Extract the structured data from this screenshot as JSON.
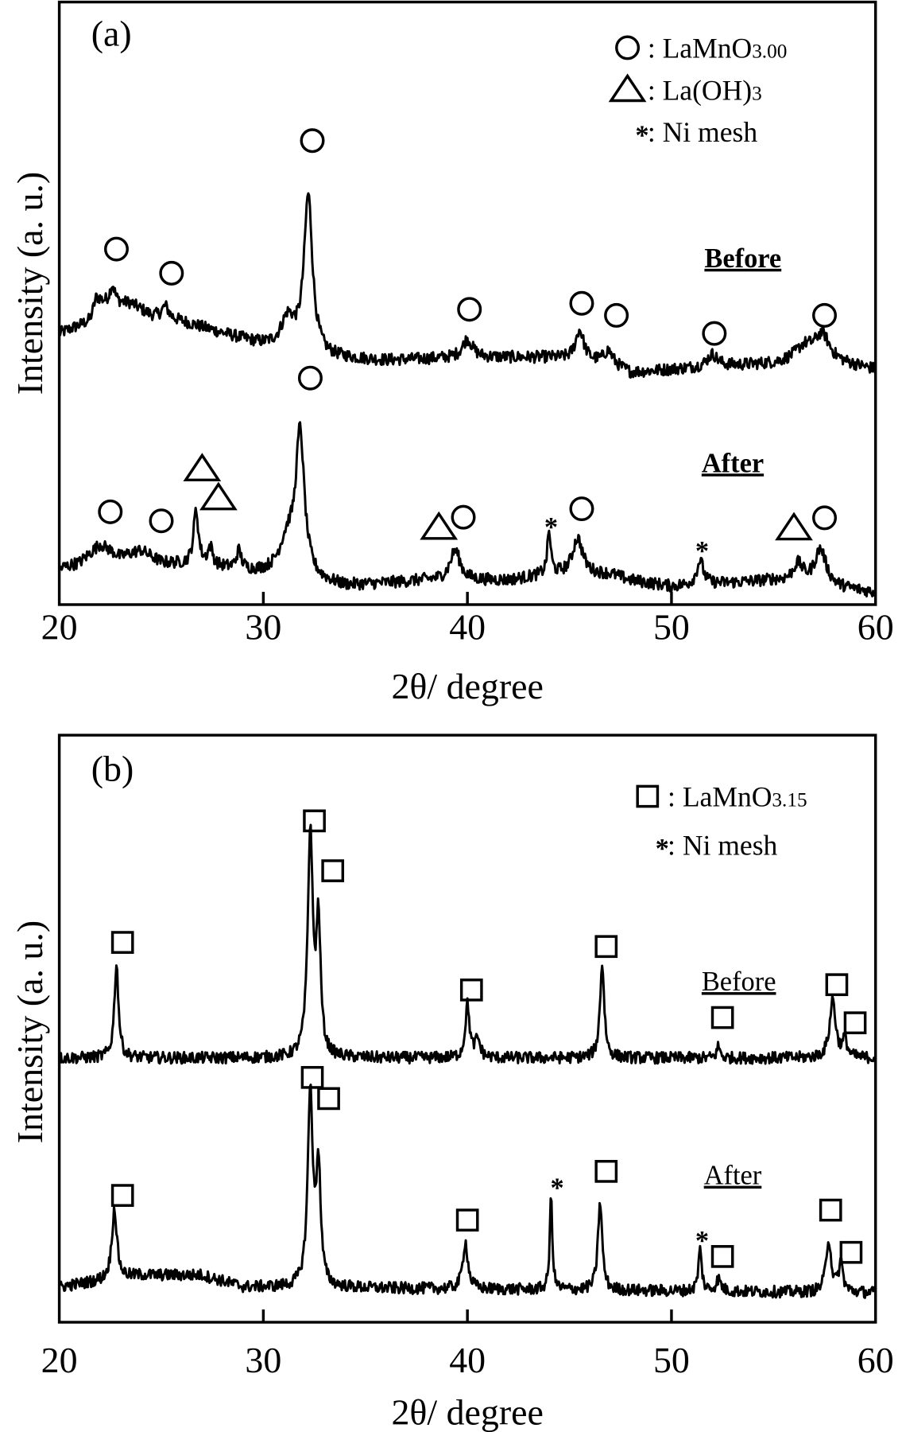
{
  "chart_data": [
    {
      "type": "line",
      "panel_label": "(a)",
      "xlabel": "2θ/ degree",
      "ylabel": "Intensity (a. u.)",
      "xlim": [
        20,
        60
      ],
      "ylim": [
        0,
        100
      ],
      "xticks": [
        20,
        30,
        40,
        50,
        60
      ],
      "trace_label_bold": true,
      "legend": [
        {
          "symbol": "circle",
          "text": ": LaMnO",
          "sub": "3.00"
        },
        {
          "symbol": "triangle",
          "text": ": La(OH)",
          "sub": "3"
        },
        {
          "symbol": "star",
          "text": ": Ni mesh",
          "sub": ""
        }
      ],
      "series": [
        {
          "name": "Before",
          "label_pos": [
            53.5,
            56
          ],
          "baseline": [
            [
              20,
              45
            ],
            [
              21.5,
              47
            ],
            [
              22,
              50
            ],
            [
              23.5,
              50
            ],
            [
              24.5,
              48
            ],
            [
              26,
              47
            ],
            [
              30,
              43
            ],
            [
              33,
              41
            ],
            [
              36,
              40.5
            ],
            [
              40,
              41
            ],
            [
              44,
              41
            ],
            [
              47,
              40
            ],
            [
              48,
              38.5
            ],
            [
              52,
              39.5
            ],
            [
              55,
              40
            ],
            [
              57,
              41
            ],
            [
              60,
              39
            ]
          ],
          "peaks": [
            [
              21.8,
              2,
              0.3
            ],
            [
              22.6,
              3,
              0.3
            ],
            [
              25.2,
              2,
              0.4
            ],
            [
              31.2,
              5,
              0.8
            ],
            [
              32.2,
              26,
              0.5
            ],
            [
              40.0,
              3,
              0.6
            ],
            [
              45.5,
              5,
              0.5
            ],
            [
              46.9,
              2,
              0.5
            ],
            [
              52.0,
              2,
              0.6
            ],
            [
              56.5,
              2,
              1
            ],
            [
              57.4,
              4,
              0.8
            ]
          ],
          "noise": 1.0
        },
        {
          "name": "After",
          "label_pos": [
            53.0,
            22
          ],
          "baseline": [
            [
              20,
              6
            ],
            [
              21,
              7
            ],
            [
              22,
              10
            ],
            [
              23,
              8
            ],
            [
              24,
              9
            ],
            [
              25,
              7
            ],
            [
              28,
              6
            ],
            [
              30,
              5
            ],
            [
              34,
              3
            ],
            [
              38,
              4
            ],
            [
              42,
              4
            ],
            [
              44,
              5
            ],
            [
              47,
              5
            ],
            [
              48,
              4
            ],
            [
              50,
              3
            ],
            [
              55,
              4
            ],
            [
              60,
              2
            ]
          ],
          "peaks": [
            [
              26.7,
              9,
              0.3
            ],
            [
              27.4,
              3,
              0.3
            ],
            [
              28.8,
              3,
              0.3
            ],
            [
              31.2,
              6,
              1
            ],
            [
              31.8,
              23,
              0.5
            ],
            [
              39.4,
              5,
              0.6
            ],
            [
              44.0,
              7,
              0.2
            ],
            [
              45.4,
              6,
              0.6
            ],
            [
              51.4,
              4,
              0.4
            ],
            [
              56.2,
              3,
              0.6
            ],
            [
              57.3,
              6,
              0.7
            ]
          ],
          "noise": 1.0
        }
      ],
      "markers": [
        {
          "symbol": "circle",
          "x": 22.8,
          "y": 59
        },
        {
          "symbol": "circle",
          "x": 25.5,
          "y": 55
        },
        {
          "symbol": "circle",
          "x": 32.4,
          "y": 77
        },
        {
          "symbol": "circle",
          "x": 40.1,
          "y": 49
        },
        {
          "symbol": "circle",
          "x": 45.6,
          "y": 50
        },
        {
          "symbol": "circle",
          "x": 47.3,
          "y": 48
        },
        {
          "symbol": "circle",
          "x": 52.1,
          "y": 45
        },
        {
          "symbol": "circle",
          "x": 57.5,
          "y": 48
        },
        {
          "symbol": "circle",
          "x": 22.5,
          "y": 15.4
        },
        {
          "symbol": "circle",
          "x": 25.0,
          "y": 13.9
        },
        {
          "symbol": "circle",
          "x": 32.3,
          "y": 37.6
        },
        {
          "symbol": "circle",
          "x": 39.8,
          "y": 14.5
        },
        {
          "symbol": "circle",
          "x": 45.6,
          "y": 15.9
        },
        {
          "symbol": "circle",
          "x": 57.5,
          "y": 14.4
        },
        {
          "symbol": "triangle",
          "x": 27.0,
          "y": 22.5
        },
        {
          "symbol": "triangle",
          "x": 27.8,
          "y": 17.7
        },
        {
          "symbol": "triangle",
          "x": 38.6,
          "y": 12.8
        },
        {
          "symbol": "triangle",
          "x": 56.0,
          "y": 12.7
        },
        {
          "symbol": "star",
          "x": 44.1,
          "y": 13.5
        },
        {
          "symbol": "star",
          "x": 51.5,
          "y": 9.5
        }
      ]
    },
    {
      "type": "line",
      "panel_label": "(b)",
      "xlabel": "2θ/ degree",
      "ylabel": "Intensity (a. u.)",
      "xlim": [
        20,
        60
      ],
      "ylim": [
        0,
        100
      ],
      "xticks": [
        20,
        30,
        40,
        50,
        60
      ],
      "trace_label_bold": false,
      "legend": [
        {
          "symbol": "square",
          "text": ": LaMnO",
          "sub": "3.15"
        },
        {
          "symbol": "star",
          "text": ": Ni mesh",
          "sub": ""
        }
      ],
      "series": [
        {
          "name": "Before",
          "label_pos": [
            53.3,
            56.5
          ],
          "baseline": [
            [
              20,
              45
            ],
            [
              60,
              45
            ]
          ],
          "peaks": [
            [
              22.8,
              16,
              0.25
            ],
            [
              32.3,
              38,
              0.3
            ],
            [
              32.7,
              22,
              0.25
            ],
            [
              40.0,
              9,
              0.25
            ],
            [
              40.5,
              3,
              0.3
            ],
            [
              46.6,
              16,
              0.25
            ],
            [
              52.3,
              2,
              0.2
            ],
            [
              57.9,
              10,
              0.35
            ],
            [
              58.5,
              3,
              0.25
            ]
          ],
          "noise": 1.0
        },
        {
          "name": "After",
          "label_pos": [
            53.0,
            23.5
          ],
          "baseline": [
            [
              20,
              6
            ],
            [
              24,
              8
            ],
            [
              27,
              8
            ],
            [
              29,
              6
            ],
            [
              60,
              5
            ]
          ],
          "peaks": [
            [
              22.7,
              12,
              0.3
            ],
            [
              32.3,
              33,
              0.3
            ],
            [
              32.7,
              20,
              0.25
            ],
            [
              39.9,
              8,
              0.3
            ],
            [
              44.1,
              16,
              0.15
            ],
            [
              46.5,
              15,
              0.25
            ],
            [
              51.4,
              7,
              0.2
            ],
            [
              52.3,
              2,
              0.3
            ],
            [
              57.7,
              9,
              0.3
            ],
            [
              58.3,
              5,
              0.25
            ]
          ],
          "noise": 1.0
        }
      ],
      "markers": [
        {
          "symbol": "square",
          "x": 23.1,
          "y": 64.7
        },
        {
          "symbol": "square",
          "x": 32.5,
          "y": 85.4
        },
        {
          "symbol": "square",
          "x": 33.4,
          "y": 76.9
        },
        {
          "symbol": "square",
          "x": 40.2,
          "y": 56.6
        },
        {
          "symbol": "square",
          "x": 46.8,
          "y": 64
        },
        {
          "symbol": "square",
          "x": 52.5,
          "y": 51.9
        },
        {
          "symbol": "square",
          "x": 58.1,
          "y": 57.5
        },
        {
          "symbol": "square",
          "x": 59.0,
          "y": 51
        },
        {
          "symbol": "square",
          "x": 23.1,
          "y": 21.6
        },
        {
          "symbol": "square",
          "x": 32.4,
          "y": 41.7
        },
        {
          "symbol": "square",
          "x": 33.2,
          "y": 38.1
        },
        {
          "symbol": "square",
          "x": 40.0,
          "y": 17.4
        },
        {
          "symbol": "square",
          "x": 46.8,
          "y": 25.7
        },
        {
          "symbol": "square",
          "x": 52.5,
          "y": 11.2
        },
        {
          "symbol": "square",
          "x": 57.8,
          "y": 19.1
        },
        {
          "symbol": "square",
          "x": 58.8,
          "y": 11.9
        },
        {
          "symbol": "star",
          "x": 44.4,
          "y": 23.5
        },
        {
          "symbol": "star",
          "x": 51.5,
          "y": 14.5
        }
      ]
    }
  ]
}
